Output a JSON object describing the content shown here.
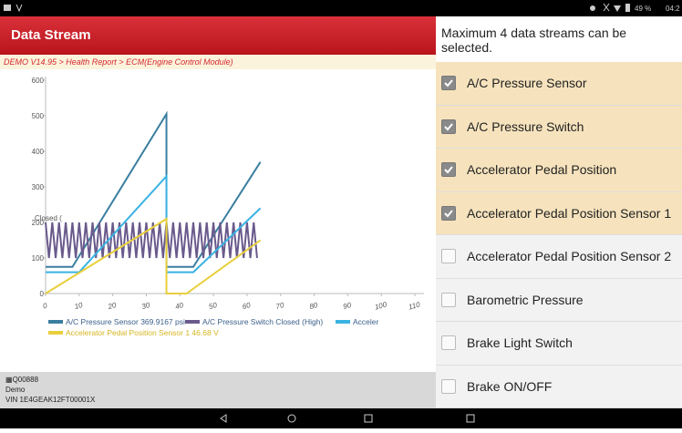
{
  "status_bar": {
    "battery": "49 %",
    "time": "04:2"
  },
  "header": {
    "title": "Data Stream"
  },
  "breadcrumb": "DEMO V14.95 > Health Report > ECM(Engine Control Module)",
  "chart": {
    "type": "line",
    "xlim": [
      0,
      110
    ],
    "xticks": [
      0,
      10,
      20,
      30,
      40,
      50,
      60,
      70,
      80,
      90,
      100,
      110
    ],
    "ylim": [
      0,
      600
    ],
    "yticks": [
      0,
      100,
      200,
      300,
      400,
      500,
      600
    ],
    "annotation": {
      "text": "Closed (",
      "y": 200
    },
    "series": [
      {
        "legend": "A/C Pressure Sensor 369.9167 psi",
        "color": "#3a7fa0",
        "x": [
          0,
          8,
          36,
          36,
          44,
          64
        ],
        "values": [
          75,
          75,
          505,
          75,
          75,
          370
        ]
      },
      {
        "legend": "A/C Pressure Switch Closed (High)",
        "color": "#6a5a8c",
        "x": [
          0,
          1,
          2,
          3,
          4,
          5,
          6,
          7,
          8,
          9,
          10,
          11,
          12,
          13,
          14,
          15,
          16,
          17,
          18,
          19,
          20,
          21,
          22,
          23,
          24,
          25,
          26,
          27,
          28,
          29,
          30,
          31,
          32,
          33,
          34,
          35,
          36,
          37,
          38,
          39,
          40,
          41,
          42,
          43,
          44,
          45,
          46,
          47,
          48,
          49,
          50,
          51,
          52,
          53,
          54,
          55,
          56,
          57,
          58,
          59,
          60,
          61,
          62,
          63
        ],
        "values": [
          200,
          100,
          200,
          100,
          200,
          100,
          200,
          100,
          200,
          100,
          200,
          100,
          200,
          100,
          200,
          100,
          200,
          100,
          200,
          100,
          200,
          100,
          200,
          100,
          200,
          100,
          200,
          100,
          200,
          100,
          200,
          100,
          200,
          100,
          200,
          100,
          200,
          100,
          200,
          100,
          200,
          100,
          200,
          100,
          200,
          100,
          200,
          100,
          200,
          100,
          200,
          100,
          200,
          100,
          200,
          100,
          200,
          100,
          200,
          100,
          200,
          100,
          200,
          100
        ]
      },
      {
        "legend": "Acceler",
        "color": "#3ab3e3",
        "x": [
          0,
          10,
          36,
          36,
          44,
          64
        ],
        "values": [
          60,
          60,
          330,
          60,
          60,
          240
        ]
      },
      {
        "legend": "Accelerator Pedal Position Sensor 1 46.68 V",
        "color": "#e8cf3c",
        "x": [
          0,
          36,
          36,
          42,
          64
        ],
        "values": [
          0,
          210,
          0,
          0,
          150
        ]
      }
    ]
  },
  "footer": {
    "id": "Q00888",
    "mode": "Demo",
    "vin": "VIN 1E4GEAK12FT00001X"
  },
  "panel": {
    "title": "Maximum 4 data streams can be selected.",
    "items": [
      {
        "label": "A/C Pressure Sensor",
        "checked": true
      },
      {
        "label": "A/C Pressure Switch",
        "checked": true
      },
      {
        "label": "Accelerator Pedal Position",
        "checked": true
      },
      {
        "label": "Accelerator Pedal Position Sensor 1",
        "checked": true
      },
      {
        "label": "Accelerator Pedal Position Sensor 2",
        "checked": false
      },
      {
        "label": "Barometric Pressure",
        "checked": false
      },
      {
        "label": "Brake Light Switch",
        "checked": false
      },
      {
        "label": "Brake ON/OFF",
        "checked": false
      }
    ]
  }
}
